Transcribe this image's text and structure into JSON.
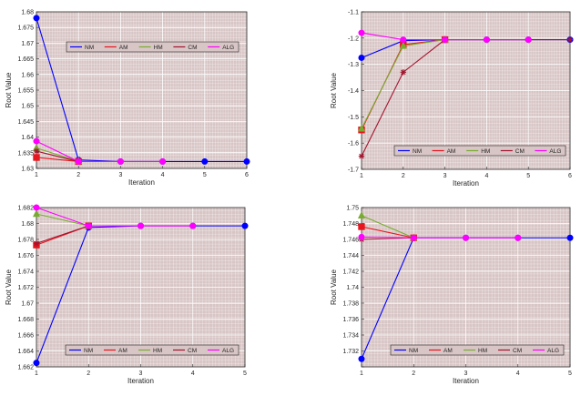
{
  "chart_data": [
    {
      "type": "line",
      "position": "top-left",
      "xlabel": "Iteration",
      "ylabel": "Root Value",
      "xlim": [
        1,
        6
      ],
      "ylim": [
        1.63,
        1.68
      ],
      "xticks": [
        1,
        2,
        3,
        4,
        5,
        6
      ],
      "yticks": [
        1.63,
        1.635,
        1.64,
        1.645,
        1.65,
        1.655,
        1.66,
        1.665,
        1.67,
        1.675,
        1.68
      ],
      "ytick_labels": [
        "1.63",
        "1.635",
        "1.64",
        "1.645",
        "1.65",
        "1.655",
        "1.66",
        "1.665",
        "1.67",
        "1.675",
        "1.68"
      ],
      "legend_position": "upper-right",
      "series": [
        {
          "name": "NM",
          "color": "#0000ff",
          "marker": "circle",
          "x": [
            1,
            2,
            3,
            4,
            5,
            6
          ],
          "values": [
            1.678,
            1.6327,
            1.6322,
            1.6322,
            1.6322,
            1.6322
          ]
        },
        {
          "name": "AM",
          "color": "#e8141e",
          "marker": "square",
          "x": [
            1,
            2
          ],
          "values": [
            1.6335,
            1.6322
          ]
        },
        {
          "name": "HM",
          "color": "#78ac30",
          "marker": "triangle",
          "x": [
            1,
            2
          ],
          "values": [
            1.6365,
            1.6323
          ]
        },
        {
          "name": "CM",
          "color": "#a2142f",
          "marker": "star",
          "x": [
            1,
            2
          ],
          "values": [
            1.6355,
            1.6322
          ]
        },
        {
          "name": "ALG",
          "color": "#ff00ff",
          "marker": "circle",
          "x": [
            1,
            2,
            3,
            4
          ],
          "values": [
            1.6387,
            1.6322,
            1.6322,
            1.6322
          ]
        }
      ]
    },
    {
      "type": "line",
      "position": "top-right",
      "xlabel": "Iteration",
      "ylabel": "Root Value",
      "xlim": [
        1,
        6
      ],
      "ylim": [
        -1.7,
        -1.1
      ],
      "xticks": [
        1,
        2,
        3,
        4,
        5,
        6
      ],
      "yticks": [
        -1.7,
        -1.6,
        -1.5,
        -1.4,
        -1.3,
        -1.2,
        -1.1
      ],
      "ytick_labels": [
        "-1.7",
        "-1.6",
        "-1.5",
        "-1.4",
        "-1.3",
        "-1.2",
        "-1.1"
      ],
      "legend_position": "lower-right",
      "series": [
        {
          "name": "NM",
          "color": "#0000ff",
          "marker": "circle",
          "x": [
            1,
            2,
            3,
            4,
            5,
            6
          ],
          "values": [
            -1.275,
            -1.21,
            -1.206,
            -1.206,
            -1.206,
            -1.206
          ]
        },
        {
          "name": "AM",
          "color": "#e8141e",
          "marker": "square",
          "x": [
            1,
            2,
            3
          ],
          "values": [
            -1.55,
            -1.225,
            -1.206
          ]
        },
        {
          "name": "HM",
          "color": "#78ac30",
          "marker": "triangle",
          "x": [
            1,
            2,
            3
          ],
          "values": [
            -1.545,
            -1.23,
            -1.206
          ]
        },
        {
          "name": "CM",
          "color": "#a2142f",
          "marker": "star",
          "x": [
            1,
            2,
            3,
            4,
            5,
            6
          ],
          "values": [
            -1.65,
            -1.33,
            -1.206,
            -1.206,
            -1.206,
            -1.206
          ]
        },
        {
          "name": "ALG",
          "color": "#ff00ff",
          "marker": "circle",
          "x": [
            1,
            2,
            3,
            4,
            5
          ],
          "values": [
            -1.18,
            -1.206,
            -1.206,
            -1.206,
            -1.206
          ]
        }
      ]
    },
    {
      "type": "line",
      "position": "bottom-left",
      "xlabel": "Iteration",
      "ylabel": "Root Value",
      "xlim": [
        1,
        5
      ],
      "ylim": [
        1.662,
        1.682
      ],
      "xticks": [
        1,
        2,
        3,
        4,
        5
      ],
      "yticks": [
        1.662,
        1.664,
        1.666,
        1.668,
        1.67,
        1.672,
        1.674,
        1.676,
        1.678,
        1.68,
        1.682
      ],
      "ytick_labels": [
        "1.662",
        "1.664",
        "1.666",
        "1.668",
        "1.67",
        "1.672",
        "1.674",
        "1.676",
        "1.678",
        "1.68",
        "1.682"
      ],
      "legend_position": "bottom",
      "series": [
        {
          "name": "NM",
          "color": "#0000ff",
          "marker": "circle",
          "x": [
            1,
            2,
            3,
            4,
            5
          ],
          "values": [
            1.6625,
            1.6795,
            1.6797,
            1.6797,
            1.6797
          ]
        },
        {
          "name": "AM",
          "color": "#e8141e",
          "marker": "square",
          "x": [
            1,
            2
          ],
          "values": [
            1.6773,
            1.6797
          ]
        },
        {
          "name": "HM",
          "color": "#78ac30",
          "marker": "triangle",
          "x": [
            1,
            2
          ],
          "values": [
            1.6812,
            1.6797
          ]
        },
        {
          "name": "CM",
          "color": "#a2142f",
          "marker": "star",
          "x": [
            1,
            2
          ],
          "values": [
            1.6775,
            1.6797
          ]
        },
        {
          "name": "ALG",
          "color": "#ff00ff",
          "marker": "circle",
          "x": [
            1,
            2,
            3,
            4
          ],
          "values": [
            1.682,
            1.6797,
            1.6797,
            1.6797
          ]
        }
      ]
    },
    {
      "type": "line",
      "position": "bottom-right",
      "xlabel": "Iteration",
      "ylabel": "Root Value",
      "xlim": [
        1,
        5
      ],
      "ylim": [
        1.73,
        1.75
      ],
      "xticks": [
        1,
        2,
        3,
        4,
        5
      ],
      "yticks": [
        1.73,
        1.732,
        1.734,
        1.736,
        1.738,
        1.74,
        1.742,
        1.744,
        1.746,
        1.748,
        1.75
      ],
      "ytick_labels": [
        "",
        "1.732",
        "1.734",
        "1.736",
        "1.738",
        "1.74",
        "1.742",
        "1.744",
        "1.746",
        "1.748",
        "1.75"
      ],
      "legend_position": "bottom",
      "series": [
        {
          "name": "NM",
          "color": "#0000ff",
          "marker": "circle",
          "x": [
            1,
            2,
            3,
            4,
            5
          ],
          "values": [
            1.731,
            1.7462,
            1.7462,
            1.7462,
            1.7462
          ]
        },
        {
          "name": "AM",
          "color": "#e8141e",
          "marker": "square",
          "x": [
            1,
            2
          ],
          "values": [
            1.7476,
            1.7462
          ]
        },
        {
          "name": "HM",
          "color": "#78ac30",
          "marker": "triangle",
          "x": [
            1,
            2
          ],
          "values": [
            1.749,
            1.7462
          ]
        },
        {
          "name": "CM",
          "color": "#a2142f",
          "marker": "star",
          "x": [
            1,
            2
          ],
          "values": [
            1.746,
            1.7462
          ]
        },
        {
          "name": "ALG",
          "color": "#ff00ff",
          "marker": "circle",
          "x": [
            1,
            2,
            3,
            4
          ],
          "values": [
            1.7463,
            1.7462,
            1.7462,
            1.7462
          ]
        }
      ]
    }
  ]
}
